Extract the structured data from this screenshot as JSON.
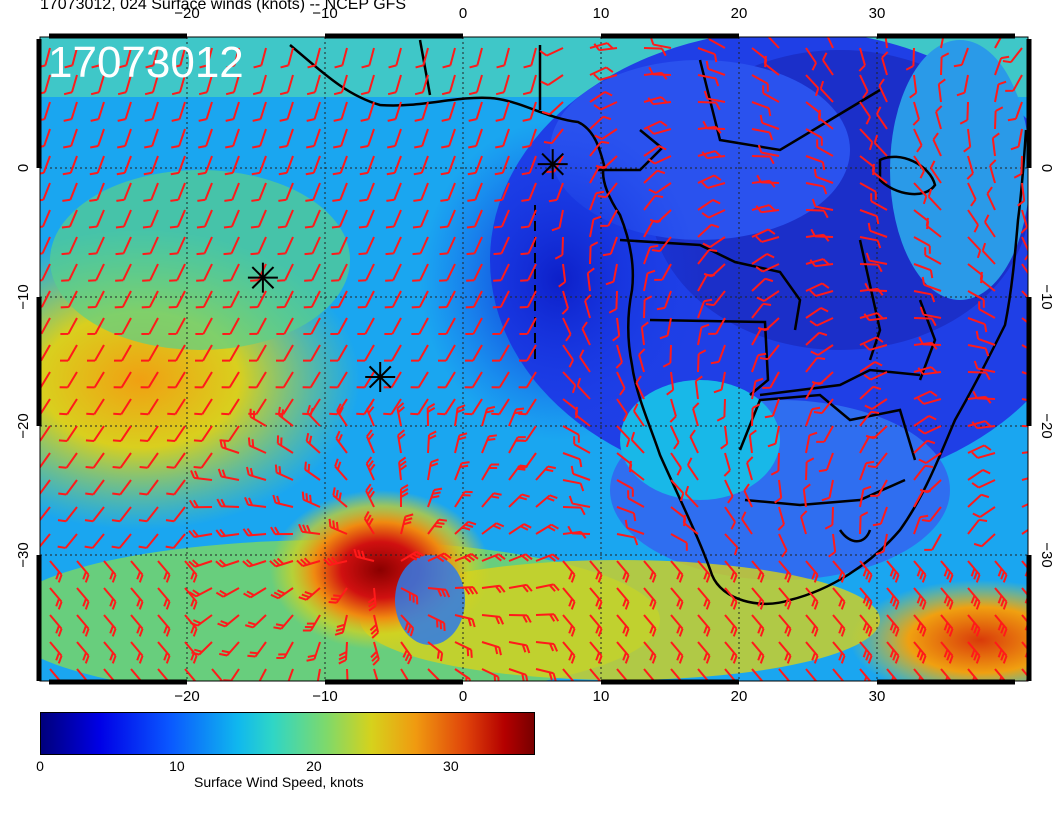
{
  "title": "17073012, 024 Surface winds (knots) -- NCEP GFS",
  "stamp": "17073012",
  "axes": {
    "lon_ticks": [
      -20,
      -10,
      0,
      10,
      20,
      30
    ],
    "lat_ticks": [
      0,
      -10,
      -20,
      -30
    ],
    "lon_labels": [
      "−20",
      "−10",
      "0",
      "10",
      "20",
      "30"
    ],
    "lat_labels": [
      "0",
      "−10",
      "−20",
      "−30"
    ]
  },
  "colorbar": {
    "caption": "Surface Wind Speed, knots",
    "ticks": [
      "0",
      "10",
      "20",
      "30"
    ],
    "tick_values": [
      0,
      10,
      20,
      30
    ],
    "range": [
      0,
      36
    ]
  },
  "storm_markers": [
    {
      "name": "marker-1",
      "lon": 6.5,
      "lat": 0.3
    },
    {
      "name": "marker-2",
      "lon": -14.5,
      "lat": -8.5
    },
    {
      "name": "marker-3",
      "lon": -6,
      "lat": -16.2
    }
  ],
  "colors": {
    "barb": "#ff1a1a",
    "coast": "#000000",
    "stamp": "#ffffff"
  }
}
